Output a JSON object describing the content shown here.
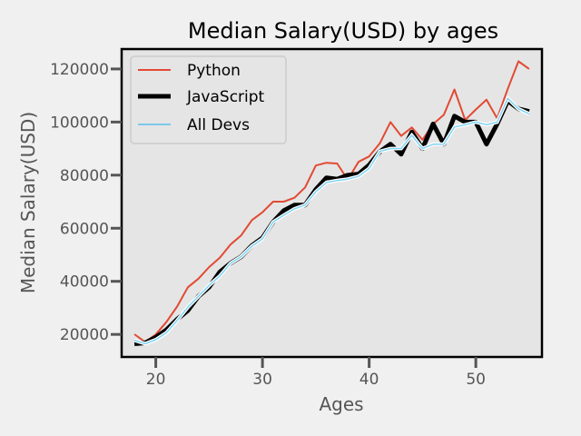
{
  "chart_data": {
    "type": "line",
    "title": "Median Salary(USD) by ages",
    "xlabel": "Ages",
    "ylabel": "Median Salary(USD)",
    "xlim": [
      16.8,
      56.2
    ],
    "ylim": [
      11500,
      127500
    ],
    "xticks": [
      20,
      30,
      40,
      50
    ],
    "yticks": [
      20000,
      40000,
      60000,
      80000,
      100000,
      120000
    ],
    "grid": false,
    "legend_position": "top-left",
    "x": [
      18,
      19,
      20,
      21,
      22,
      23,
      24,
      25,
      26,
      27,
      28,
      29,
      30,
      31,
      32,
      33,
      34,
      35,
      36,
      37,
      38,
      39,
      40,
      41,
      42,
      43,
      44,
      45,
      46,
      47,
      48,
      49,
      50,
      51,
      52,
      53,
      54,
      55
    ],
    "series": [
      {
        "name": "Python",
        "color": "#e24a33",
        "values": [
          20046,
          17100,
          20000,
          24744,
          30500,
          37732,
          41000,
          45372,
          48876,
          53850,
          57287,
          63016,
          65998,
          70003,
          70000,
          71496,
          75370,
          83640,
          84666,
          84392,
          78254,
          85000,
          87038,
          91991,
          100000,
          94796,
          97962,
          93302,
          99240,
          102736,
          112285,
          100771,
          104708,
          108423,
          101407,
          112542,
          122870,
          120000
        ]
      },
      {
        "name": "JavaScript",
        "color": "#000000",
        "values": [
          16446,
          16791,
          18942,
          21780,
          25704,
          29000,
          34372,
          37810,
          43515,
          46823,
          49293,
          53437,
          56373,
          62375,
          66674,
          68745,
          68746,
          74583,
          79000,
          78508,
          79996,
          80403,
          83820,
          88833,
          91660,
          87892,
          96243,
          90000,
          99313,
          91660,
          102264,
          100000,
          100000,
          91660,
          99240,
          108000,
          105000,
          104000
        ]
      },
      {
        "name": "All Devs",
        "color": "#7fd4f5",
        "values": [
          17784,
          16500,
          18012,
          20628,
          25206,
          30252,
          34368,
          38496,
          42000,
          46752,
          49320,
          53200,
          56000,
          62316,
          64928,
          67317,
          68748,
          73752,
          77232,
          78000,
          78508,
          79536,
          82488,
          88935,
          90000,
          90056,
          95000,
          90000,
          91633,
          91660,
          98150,
          98964,
          100000,
          98988,
          100000,
          108923,
          105000,
          103117
        ]
      }
    ]
  }
}
